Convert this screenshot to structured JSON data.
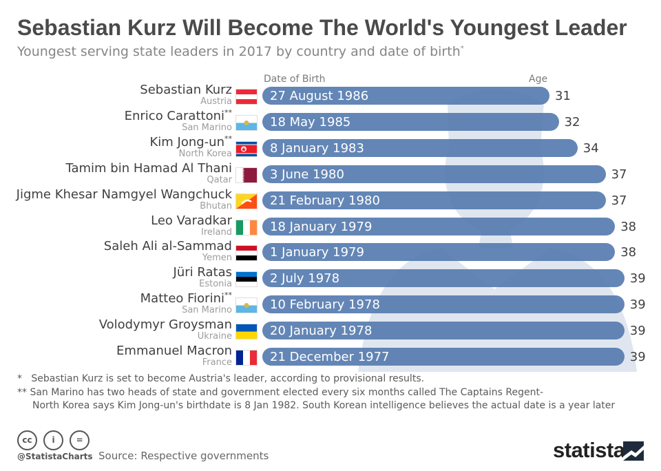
{
  "title": "Sebastian Kurz Will Become The World's Youngest Leader",
  "subtitle": "Youngest serving state leaders in 2017 by country and date of birth",
  "subtitle_mark": "*",
  "chart_data": {
    "type": "bar",
    "orientation": "horizontal",
    "title": "Sebastian Kurz Will Become The World's Youngest Leader",
    "subtitle": "Youngest serving state leaders in 2017 by country and date of birth*",
    "column_headers": {
      "date_of_birth": "Date of Birth",
      "age": "Age"
    },
    "bar_color": "#567cb0",
    "leaders": [
      {
        "name": "Sebastian Kurz",
        "mark": "",
        "country": "Austria",
        "date_of_birth": "27 August 1986",
        "age": 31,
        "flag": "austria-flag"
      },
      {
        "name": "Enrico Carattoni",
        "mark": "**",
        "country": "San Marino",
        "date_of_birth": "18 May 1985",
        "age": 32,
        "flag": "san-marino-flag"
      },
      {
        "name": "Kim Jong-un",
        "mark": "**",
        "country": "North Korea",
        "date_of_birth": "8 January 1983",
        "age": 34,
        "flag": "north-korea-flag"
      },
      {
        "name": "Tamim bin Hamad Al Thani",
        "mark": "",
        "country": "Qatar",
        "date_of_birth": "3 June 1980",
        "age": 37,
        "flag": "qatar-flag"
      },
      {
        "name": "Jigme Khesar Namgyel Wangchuck",
        "mark": "",
        "country": "Bhutan",
        "date_of_birth": "21 February 1980",
        "age": 37,
        "flag": "bhutan-flag"
      },
      {
        "name": "Leo Varadkar",
        "mark": "",
        "country": "Ireland",
        "date_of_birth": "18 January 1979",
        "age": 38,
        "flag": "ireland-flag"
      },
      {
        "name": "Saleh Ali al-Sammad",
        "mark": "",
        "country": "Yemen",
        "date_of_birth": "1 January 1979",
        "age": 38,
        "flag": "yemen-flag"
      },
      {
        "name": "Jüri Ratas",
        "mark": "",
        "country": "Estonia",
        "date_of_birth": "2 July 1978",
        "age": 39,
        "flag": "estonia-flag"
      },
      {
        "name": "Matteo Fiorini",
        "mark": "**",
        "country": "San Marino",
        "date_of_birth": "10 February 1978",
        "age": 39,
        "flag": "san-marino-flag"
      },
      {
        "name": "Volodymyr Groysman",
        "mark": "",
        "country": "Ukraine",
        "date_of_birth": "20 January 1978",
        "age": 39,
        "flag": "ukraine-flag"
      },
      {
        "name": "Emmanuel Macron",
        "mark": "",
        "country": "France",
        "date_of_birth": "21 December 1977",
        "age": 39,
        "flag": "france-flag"
      }
    ]
  },
  "notes": {
    "note1_mark": "*",
    "note1": "Sebastian Kurz is set to become Austria's leader, according to provisional results.",
    "note2_mark": "**",
    "note2a": "San Marino has two heads of state and government elected every six months called The Captains Regent-",
    "note2b": "North Korea says Kim Jong-un's birthdate is 8 Jan 1982. South Korean intelligence believes the actual date is a year later"
  },
  "footer": {
    "handle": "@StatistaCharts",
    "source": "Source: Respective governments",
    "logo": "statista",
    "license_icons": [
      "cc",
      "i",
      "="
    ]
  }
}
